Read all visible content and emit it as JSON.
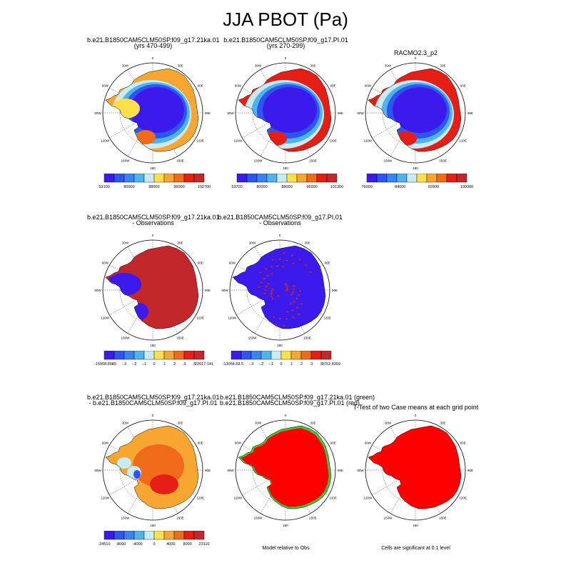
{
  "title": "JJA PBOT (Pa)",
  "colors": {
    "background": "#ffffff",
    "ocean": "#ffffff",
    "significant": "#ff0000",
    "green_case": "#33cc33",
    "palette": [
      "#3d1aec",
      "#2c55f2",
      "#3b82f3",
      "#4fb4ec",
      "#c8ecf5",
      "#fde04a",
      "#f8a632",
      "#ef6b1a",
      "#e51f16",
      "#c22729"
    ]
  },
  "panels": [
    {
      "id": "case1",
      "title": [
        "b.e21.B1850CAM5CLM50SP.f09_g17.21ka.01",
        "(yrs 470-499)"
      ],
      "map_style": "field1",
      "colorbar": {
        "labels": [
          "53100",
          "80000",
          "88000",
          "96000",
          "102700"
        ]
      }
    },
    {
      "id": "case2",
      "title": [
        "b.e21.B1850CAM5CLM50SP.f09_g17.PI.01",
        "(yrs 270-299)"
      ],
      "map_style": "field2",
      "colorbar": {
        "labels": [
          "53700",
          "80000",
          "88000",
          "96000",
          "101300"
        ]
      }
    },
    {
      "id": "obs",
      "title": [
        "RACMO2.3_p2"
      ],
      "map_style": "field3",
      "colorbar": {
        "labels": [
          "76000",
          "84000",
          "92000",
          "100000"
        ]
      }
    },
    {
      "id": "diff1",
      "title": [
        "b.e21.B1850CAM5CLM50SP.f09_g17.21ka.01",
        "- Observations"
      ],
      "map_style": "diff_obs1",
      "colorbar": {
        "labels": [
          "-15908.898",
          "-.5",
          "-.3",
          "-.2",
          "-.1",
          "0",
          ".1",
          ".2",
          ".3",
          ".5",
          "22617.141"
        ]
      }
    },
    {
      "id": "diff2",
      "title": [
        "b.e21.B1850CAM5CLM50SP.f09_g17.PI.01",
        "- Observations"
      ],
      "map_style": "diff_obs2",
      "colorbar": {
        "labels": [
          "-13058.82",
          "-.5",
          "-.3",
          "-.2",
          "-.1",
          "0",
          ".1",
          ".2",
          ".3",
          ".5",
          "3762.8359"
        ]
      }
    },
    {
      "id": "diff3",
      "title": [
        "b.e21.B1850CAM5CLM50SP.f09_g17.21ka.01",
        "- b.e21.B1850CAM5CLM50SP.f09_g17.PI.01"
      ],
      "map_style": "diff_cases",
      "colorbar": {
        "labels": [
          "-24510",
          "-8000",
          "-4000",
          "0",
          "4000",
          "8000",
          "23110"
        ]
      }
    },
    {
      "id": "rel",
      "title": [
        "b.e21.B1850CAM5CLM50SP.f09_g17.21ka.01 (green)",
        "b.e21.B1850CAM5CLM50SP.f09_g17.PI.01 (red)"
      ],
      "map_style": "relative",
      "footnote": "Model relative to Obs"
    },
    {
      "id": "ttest",
      "title": [
        "T-Test of two Case means at each grid point"
      ],
      "map_style": "ttest",
      "footnote": "Cells are significant at 0.1 level"
    }
  ],
  "map_labels": {
    "lon": [
      "0",
      "30E",
      "60E",
      "90E",
      "120E",
      "150E",
      "180",
      "150W",
      "120W",
      "90W",
      "60W",
      "30W"
    ]
  }
}
